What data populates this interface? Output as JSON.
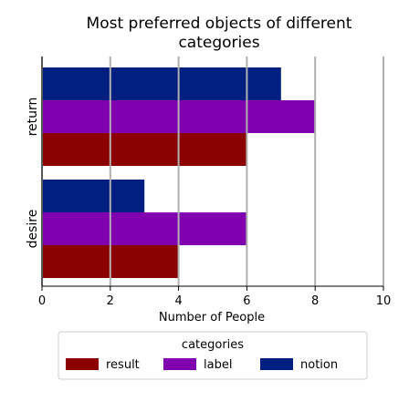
{
  "chart_data": {
    "type": "bar",
    "orientation": "horizontal",
    "title_lines": [
      "Most preferred objects of different",
      "categories"
    ],
    "xlabel": "Number of People",
    "ylabel": "",
    "xlim": [
      0,
      10
    ],
    "xticks": [
      0,
      2,
      4,
      6,
      8,
      10
    ],
    "grid": true,
    "categories": [
      "return",
      "desire"
    ],
    "series": [
      {
        "name": "result",
        "color": "#8b0000",
        "values": [
          6,
          4
        ]
      },
      {
        "name": "label",
        "color": "#8000b0",
        "values": [
          8,
          6
        ]
      },
      {
        "name": "notion",
        "color": "#001f80",
        "values": [
          7,
          3
        ]
      }
    ],
    "legend": {
      "title": "categories",
      "placement": "bottom-center",
      "entries": [
        "result",
        "label",
        "notion"
      ]
    }
  }
}
